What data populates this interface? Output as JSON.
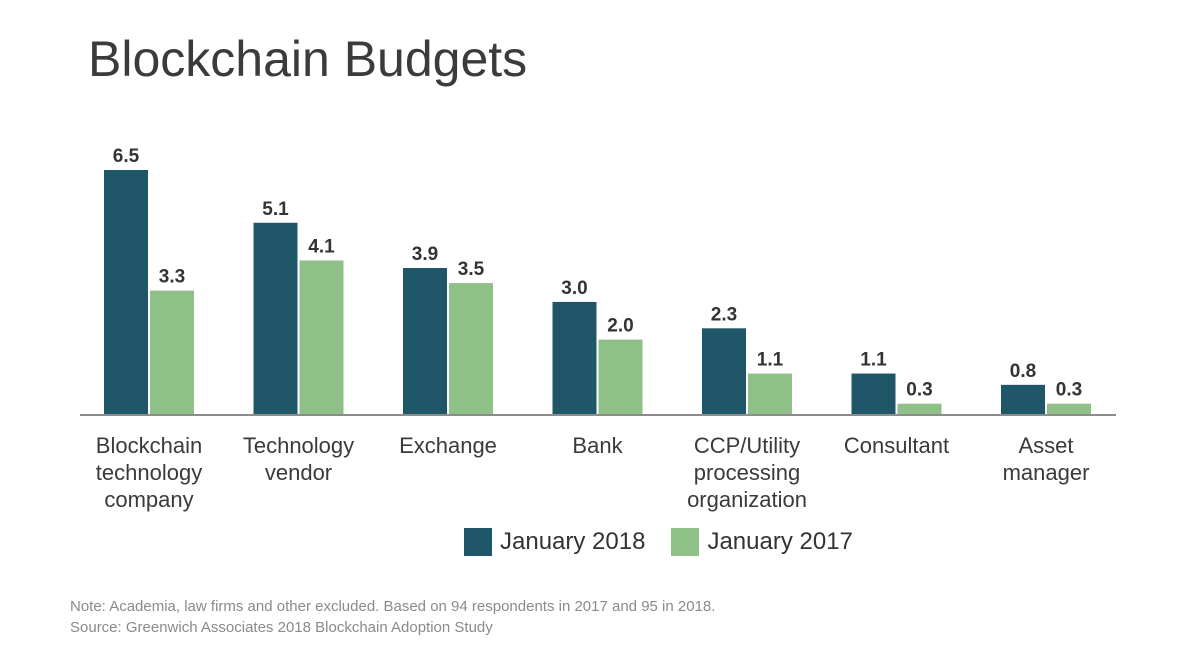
{
  "title": "Blockchain Budgets",
  "colors": {
    "series_2018": "#1f5668",
    "series_2017": "#8fc088",
    "axis": "#8c8c8c",
    "text": "#333333"
  },
  "chart_data": {
    "type": "bar",
    "title": "Blockchain Budgets",
    "categories": [
      "Blockchain technology company",
      "Technology vendor",
      "Exchange",
      "Bank",
      "CCP/Utility processing organization",
      "Consultant",
      "Asset manager"
    ],
    "category_lines": [
      [
        "Blockchain",
        "technology",
        "company"
      ],
      [
        "Technology",
        "vendor"
      ],
      [
        "Exchange"
      ],
      [
        "Bank"
      ],
      [
        "CCP/Utility",
        "processing",
        "organization"
      ],
      [
        "Consultant"
      ],
      [
        "Asset",
        "manager"
      ]
    ],
    "series": [
      {
        "name": "January 2018",
        "values": [
          6.5,
          5.1,
          3.9,
          3.0,
          2.3,
          1.1,
          0.8
        ],
        "labels": [
          "6.5",
          "5.1",
          "3.9",
          "3.0",
          "2.3",
          "1.1",
          "0.8"
        ]
      },
      {
        "name": "January 2017",
        "values": [
          3.3,
          4.1,
          3.5,
          2.0,
          1.1,
          0.3,
          0.3
        ],
        "labels": [
          "3.3",
          "4.1",
          "3.5",
          "2.0",
          "1.1",
          "0.3",
          "0.3"
        ]
      }
    ],
    "xlabel": "",
    "ylabel": "",
    "ylim": [
      0,
      6.5
    ],
    "grid": false,
    "legend_position": "bottom"
  },
  "legend": [
    {
      "label": "January 2018"
    },
    {
      "label": "January 2017"
    }
  ],
  "footnotes": {
    "note": "Note: Academia, law firms and other excluded. Based on 94 respondents in 2017 and 95 in 2018.",
    "source": "Source: Greenwich Associates 2018 Blockchain Adoption Study"
  }
}
